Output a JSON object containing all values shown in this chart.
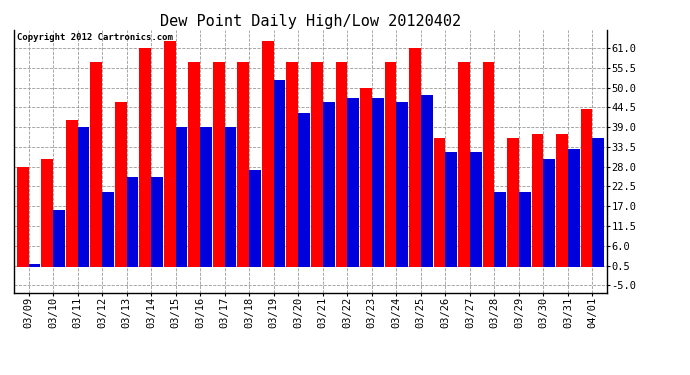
{
  "title": "Dew Point Daily High/Low 20120402",
  "copyright": "Copyright 2012 Cartronics.com",
  "dates": [
    "03/09",
    "03/10",
    "03/11",
    "03/12",
    "03/13",
    "03/14",
    "03/15",
    "03/16",
    "03/17",
    "03/18",
    "03/19",
    "03/20",
    "03/21",
    "03/22",
    "03/23",
    "03/24",
    "03/25",
    "03/26",
    "03/27",
    "03/28",
    "03/29",
    "03/30",
    "03/31",
    "04/01"
  ],
  "highs": [
    28,
    30,
    41,
    57,
    46,
    61,
    63,
    57,
    57,
    57,
    63,
    57,
    57,
    57,
    50,
    57,
    61,
    36,
    57,
    57,
    36,
    37,
    37,
    44
  ],
  "lows": [
    1,
    16,
    39,
    21,
    25,
    25,
    39,
    39,
    39,
    27,
    52,
    43,
    46,
    47,
    47,
    46,
    48,
    32,
    32,
    21,
    21,
    30,
    33,
    36
  ],
  "high_color": "#ff0000",
  "low_color": "#0000dd",
  "bg_color": "#ffffff",
  "plot_bg_color": "#ffffff",
  "grid_color": "#999999",
  "y_ticks": [
    -5.0,
    0.5,
    6.0,
    11.5,
    17.0,
    22.5,
    28.0,
    33.5,
    39.0,
    44.5,
    50.0,
    55.5,
    61.0
  ],
  "ylim": [
    -7,
    66
  ],
  "bar_width": 0.48,
  "title_fontsize": 11,
  "tick_fontsize": 7.5,
  "copyright_fontsize": 6.5
}
